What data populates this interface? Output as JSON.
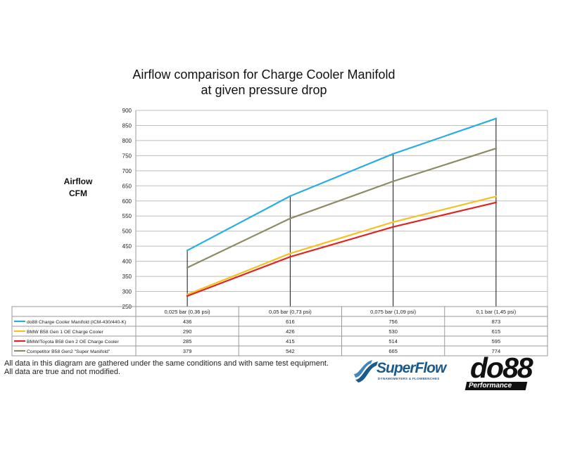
{
  "chart_data": {
    "type": "line",
    "title_line1": "Airflow comparison for Charge Cooler Manifold",
    "title_line2": "at given pressure drop",
    "ylabel_line1": "Airflow",
    "ylabel_line2": "CFM",
    "ylim": [
      250,
      900
    ],
    "yticks": [
      250,
      300,
      350,
      400,
      450,
      500,
      550,
      600,
      650,
      700,
      750,
      800,
      850,
      900
    ],
    "grid": true,
    "categories": [
      "0,025 bar (0,36 psi)",
      "0,05 bar (0,73 psi)",
      "0,075 bar (1,09 psi)",
      "0,1 bar (1,45 psi)"
    ],
    "series": [
      {
        "name": "do88 Charge Cooler Manifold (ICM-430/440-K)",
        "color": "#2aaee2",
        "values": [
          436,
          616,
          756,
          873
        ]
      },
      {
        "name": "BMW B58 Gen 1 OE Charge Cooler",
        "color": "#f5c024",
        "values": [
          290,
          426,
          530,
          615
        ]
      },
      {
        "name": "BMW/Toyota B58 Gen 2 OE Charge Cooler",
        "color": "#e02424",
        "values": [
          285,
          415,
          514,
          595
        ]
      },
      {
        "name": "Competitor B58 Gen2 \"Super Manifold\"",
        "color": "#8f8a66",
        "values": [
          379,
          542,
          665,
          774
        ]
      }
    ]
  },
  "footnote": {
    "line1": "All data in this diagram are gathered under the same conditions and with same test equipment.",
    "line2": "All data are true and not modified."
  },
  "logos": {
    "superflow_name": "SuperFlow",
    "superflow_tagline": "DYNAMOMETERS & FLOWBENCHES",
    "do88_name": "do88",
    "do88_tagline": "Performance"
  }
}
